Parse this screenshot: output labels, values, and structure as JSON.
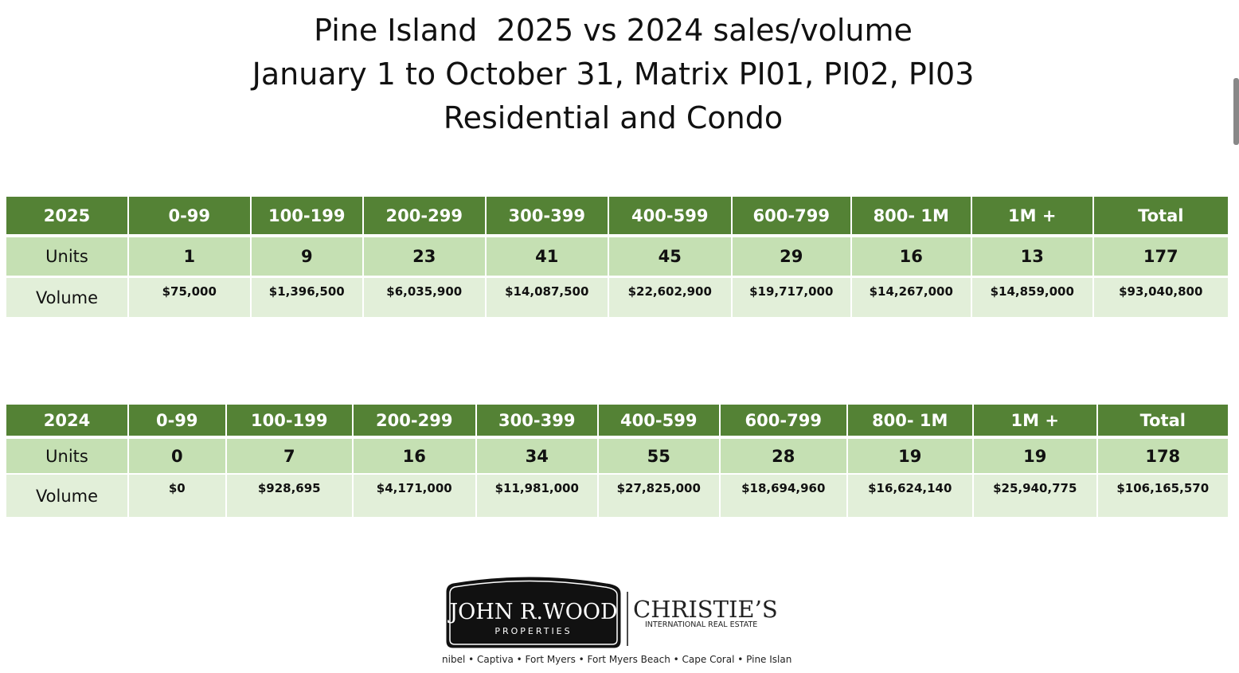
{
  "title": {
    "lines": [
      "Pine Island  2025 vs 2024 sales/volume",
      "January 1 to October 31, Matrix PI01, PI02, PI03",
      "Residential and Condo"
    ]
  },
  "tables": [
    {
      "header": [
        "2025",
        "0-99",
        "100-199",
        "200-299",
        "300-399",
        "400-599",
        "600-799",
        "800- 1M",
        "1M +",
        "Total"
      ],
      "rows": [
        [
          "Units",
          1,
          9,
          23,
          41,
          45,
          29,
          16,
          13,
          177
        ],
        [
          "Volume",
          "$75,000",
          "$1,396,500",
          "$6,035,900",
          "$14,087,500",
          "$22,602,900",
          "$19,717,000",
          "$14,267,000",
          "$14,859,000",
          "$93,040,800"
        ]
      ]
    },
    {
      "header": [
        "2024",
        "0-99",
        "100-199",
        "200-299",
        "300-399",
        "400-599",
        "600-799",
        "800- 1M",
        "1M +",
        "Total"
      ],
      "rows": [
        [
          "Units",
          0,
          7,
          16,
          34,
          55,
          28,
          19,
          19,
          178
        ],
        [
          "Volume",
          "$0",
          "$928,695",
          "$4,171,000",
          "$11,981,000",
          "$27,825,000",
          "$18,694,960",
          "$16,624,140",
          "$25,940,775",
          "$106,165,570"
        ]
      ]
    }
  ],
  "logo": {
    "name": "JOHN R.WOOD",
    "tagline": "PROPERTIES",
    "partner": "CHRISTIE’S",
    "partner_sub": "INTERNATIONAL REAL ESTATE",
    "locations": "Sanibel • Captiva • Fort Myers • Fort Myers Beach • Cape Coral • Pine Island"
  }
}
